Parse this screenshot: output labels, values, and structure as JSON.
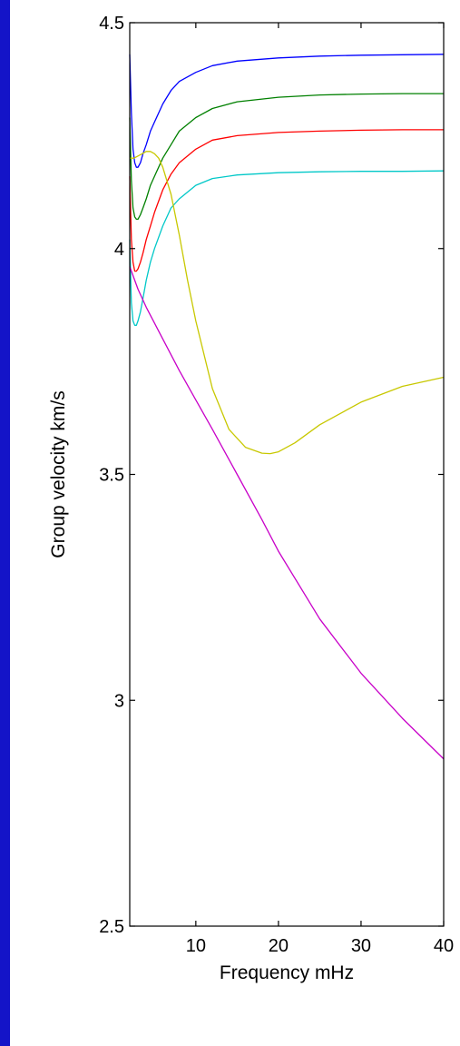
{
  "chart_data": {
    "type": "line",
    "title": "",
    "xlabel": "Frequency mHz",
    "ylabel": "Group velocity km/s",
    "xlim": [
      2,
      40
    ],
    "ylim": [
      2.5,
      4.5
    ],
    "x_ticks": [
      10,
      20,
      30,
      40
    ],
    "y_ticks": [
      2.5,
      3,
      3.5,
      4,
      4.5
    ],
    "x_tick_labels": [
      "10",
      "20",
      "30",
      "40"
    ],
    "y_tick_labels": [
      "2.5",
      "3",
      "3.5",
      "4",
      "4.5"
    ],
    "grid": false,
    "legend": "none",
    "series": [
      {
        "color": "#0000ff",
        "x": [
          2,
          2.2,
          2.4,
          2.6,
          2.8,
          3,
          3.3,
          3.6,
          4,
          4.5,
          5,
          6,
          7,
          8,
          10,
          12,
          15,
          20,
          25,
          30,
          35,
          40
        ],
        "y": [
          4.43,
          4.3,
          4.22,
          4.19,
          4.18,
          4.18,
          4.19,
          4.21,
          4.23,
          4.26,
          4.28,
          4.32,
          4.35,
          4.37,
          4.39,
          4.405,
          4.415,
          4.422,
          4.426,
          4.428,
          4.429,
          4.43
        ]
      },
      {
        "color": "#008000",
        "x": [
          2,
          2.2,
          2.4,
          2.6,
          2.8,
          3,
          3.3,
          3.6,
          4,
          4.5,
          5,
          6,
          7,
          8,
          10,
          12,
          15,
          20,
          25,
          30,
          35,
          40
        ],
        "y": [
          4.29,
          4.15,
          4.09,
          4.07,
          4.065,
          4.065,
          4.075,
          4.09,
          4.11,
          4.14,
          4.16,
          4.2,
          4.23,
          4.26,
          4.29,
          4.31,
          4.325,
          4.335,
          4.34,
          4.342,
          4.343,
          4.343
        ]
      },
      {
        "color": "#ff0000",
        "x": [
          2,
          2.2,
          2.4,
          2.6,
          2.8,
          3,
          3.3,
          3.6,
          4,
          4.5,
          5,
          6,
          7,
          8,
          10,
          12,
          15,
          20,
          25,
          30,
          35,
          40
        ],
        "y": [
          4.16,
          4.02,
          3.97,
          3.95,
          3.95,
          3.955,
          3.97,
          3.99,
          4.02,
          4.05,
          4.08,
          4.13,
          4.165,
          4.19,
          4.22,
          4.24,
          4.25,
          4.257,
          4.26,
          4.262,
          4.263,
          4.263
        ]
      },
      {
        "color": "#00c8c8",
        "x": [
          2,
          2.2,
          2.4,
          2.6,
          2.8,
          3,
          3.3,
          3.6,
          4,
          4.5,
          5,
          6,
          7,
          8,
          10,
          12,
          15,
          20,
          25,
          30,
          35,
          40
        ],
        "y": [
          4.02,
          3.88,
          3.84,
          3.83,
          3.83,
          3.84,
          3.86,
          3.89,
          3.93,
          3.97,
          4.0,
          4.05,
          4.09,
          4.11,
          4.14,
          4.155,
          4.163,
          4.168,
          4.17,
          4.171,
          4.171,
          4.172
        ]
      },
      {
        "color": "#c8c800",
        "x": [
          2,
          2.5,
          3,
          3.5,
          4,
          4.5,
          5,
          5.5,
          6,
          7,
          8,
          9,
          10,
          12,
          14,
          16,
          18,
          19,
          20,
          22,
          25,
          30,
          35,
          40
        ],
        "y": [
          4.2,
          4.2,
          4.205,
          4.21,
          4.215,
          4.215,
          4.21,
          4.2,
          4.18,
          4.12,
          4.03,
          3.93,
          3.84,
          3.69,
          3.6,
          3.56,
          3.547,
          3.546,
          3.55,
          3.57,
          3.61,
          3.66,
          3.695,
          3.715
        ]
      },
      {
        "color": "#c800c8",
        "x": [
          2,
          3,
          4,
          6,
          8,
          10,
          12,
          15,
          18,
          20,
          25,
          30,
          35,
          40
        ],
        "y": [
          3.96,
          3.91,
          3.87,
          3.8,
          3.73,
          3.665,
          3.6,
          3.5,
          3.4,
          3.33,
          3.18,
          3.06,
          2.96,
          2.87
        ]
      }
    ]
  }
}
